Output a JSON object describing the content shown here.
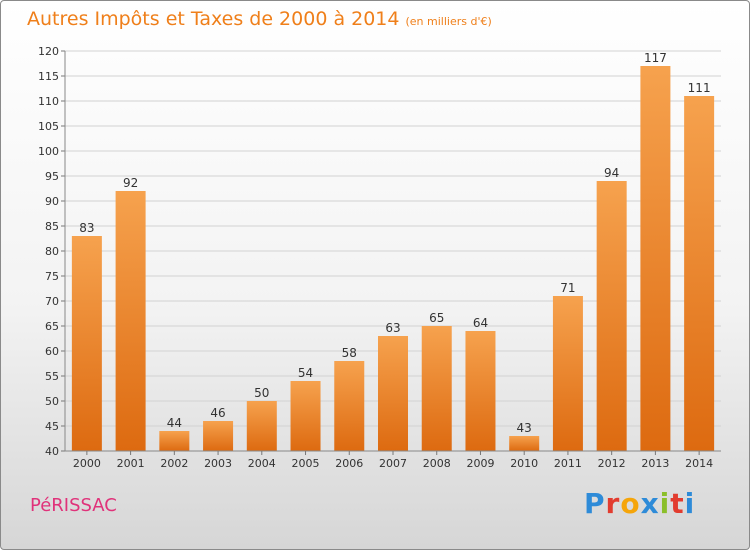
{
  "chart_data": {
    "type": "bar",
    "title": "Autres Impôts et Taxes de 2000 à 2014",
    "subtitle": "(en milliers d'€)",
    "categories": [
      "2000",
      "2001",
      "2002",
      "2003",
      "2004",
      "2005",
      "2006",
      "2007",
      "2008",
      "2009",
      "2010",
      "2011",
      "2012",
      "2013",
      "2014"
    ],
    "values": [
      83,
      92,
      44,
      46,
      50,
      54,
      58,
      63,
      65,
      64,
      43,
      71,
      94,
      117,
      111
    ],
    "xlabel": "",
    "ylabel": "",
    "ylim": [
      40,
      120
    ],
    "yticks": [
      40,
      45,
      50,
      55,
      60,
      65,
      70,
      75,
      80,
      85,
      90,
      95,
      100,
      105,
      110,
      115,
      120
    ],
    "grid": true,
    "bar_color": "#ef7f1a"
  },
  "footer": {
    "commune": "PéRISSAC",
    "brand_letters": [
      "P",
      "r",
      "o",
      "x",
      "i",
      "t",
      "i"
    ],
    "brand_colors": [
      "#2e8bd8",
      "#e23c2f",
      "#f5a50a",
      "#2e8bd8",
      "#8bbf2a",
      "#e23c2f",
      "#2e8bd8"
    ]
  }
}
